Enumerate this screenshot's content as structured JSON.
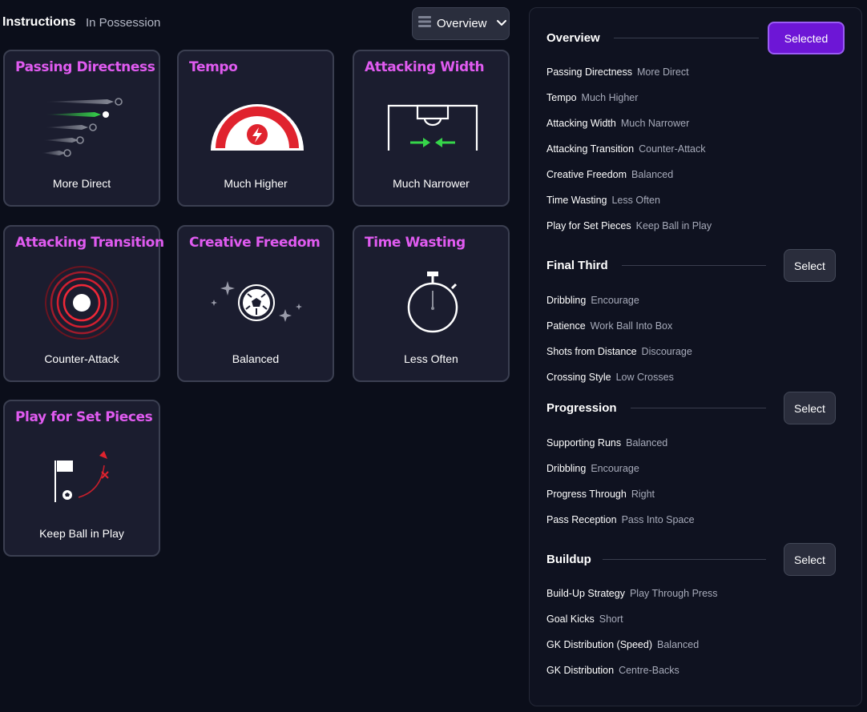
{
  "header": {
    "title": "Instructions",
    "subtitle": "In Possession",
    "view_select": {
      "value": "Overview",
      "icon": "list-icon",
      "chevron": "chevron-down-icon"
    }
  },
  "cards": [
    {
      "title": "Passing Directness",
      "value": "More Direct",
      "icon": "passing-arrows-icon"
    },
    {
      "title": "Tempo",
      "value": "Much Higher",
      "icon": "tempo-gauge-icon"
    },
    {
      "title": "Attacking Width",
      "value": "Much Narrower",
      "icon": "pitch-width-icon"
    },
    {
      "title": "Attacking Transition",
      "value": "Counter-Attack",
      "icon": "target-rings-icon"
    },
    {
      "title": "Creative Freedom",
      "value": "Balanced",
      "icon": "ball-sparkle-icon"
    },
    {
      "title": "Time Wasting",
      "value": "Less Often",
      "icon": "stopwatch-icon"
    },
    {
      "title": "Play for Set Pieces",
      "value": "Keep Ball in Play",
      "icon": "corner-flag-icon"
    }
  ],
  "accent": "#e05bf0",
  "panel": {
    "sections": [
      {
        "title": "Overview",
        "button": "Selected",
        "active": true,
        "items": [
          {
            "k": "Passing Directness",
            "v": "More Direct"
          },
          {
            "k": "Tempo",
            "v": "Much Higher"
          },
          {
            "k": "Attacking Width",
            "v": "Much Narrower"
          },
          {
            "k": "Attacking Transition",
            "v": "Counter-Attack"
          },
          {
            "k": "Creative Freedom",
            "v": "Balanced"
          },
          {
            "k": "Time Wasting",
            "v": "Less Often"
          },
          {
            "k": "Play for Set Pieces",
            "v": "Keep Ball in Play"
          }
        ]
      },
      {
        "title": "Final Third",
        "button": "Select",
        "active": false,
        "items": [
          {
            "k": "Dribbling",
            "v": "Encourage"
          },
          {
            "k": "Patience",
            "v": "Work Ball Into Box"
          },
          {
            "k": "Shots from Distance",
            "v": "Discourage"
          },
          {
            "k": "Crossing Style",
            "v": "Low Crosses"
          }
        ]
      },
      {
        "title": "Progression",
        "button": "Select",
        "active": false,
        "items": [
          {
            "k": "Supporting Runs",
            "v": "Balanced"
          },
          {
            "k": "Dribbling",
            "v": "Encourage"
          },
          {
            "k": "Progress Through",
            "v": "Right"
          },
          {
            "k": "Pass Reception",
            "v": "Pass Into Space"
          }
        ]
      },
      {
        "title": "Buildup",
        "button": "Select",
        "active": false,
        "items": [
          {
            "k": "Build-Up Strategy",
            "v": "Play Through Press"
          },
          {
            "k": "Goal Kicks",
            "v": "Short"
          },
          {
            "k": "GK Distribution (Speed)",
            "v": "Balanced"
          },
          {
            "k": "GK Distribution",
            "v": "Centre-Backs"
          }
        ]
      }
    ]
  }
}
